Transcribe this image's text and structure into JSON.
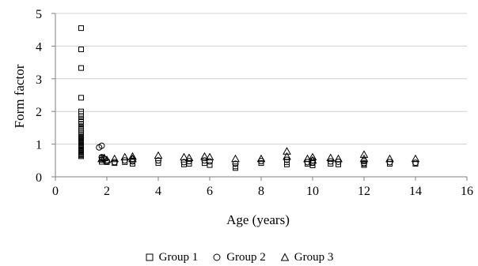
{
  "chart_data": {
    "type": "scatter",
    "title": "",
    "xlabel": "Age (years)",
    "ylabel": "Form factor",
    "xlim": [
      0,
      16
    ],
    "ylim": [
      0,
      5
    ],
    "xticks": [
      0,
      2,
      4,
      6,
      8,
      10,
      12,
      14,
      16
    ],
    "yticks": [
      0,
      1,
      2,
      3,
      4,
      5
    ],
    "grid": "horizontal",
    "legend_position": "bottom",
    "series": [
      {
        "name": "Group 1",
        "marker": "square",
        "x": [
          1,
          1,
          1,
          1,
          1,
          1,
          1,
          1,
          1,
          1,
          1,
          1,
          1,
          1,
          1,
          1,
          1,
          1,
          1,
          1,
          1,
          1,
          1,
          1,
          1,
          1,
          1,
          1,
          1,
          1,
          1,
          1,
          1,
          1,
          1,
          1.8,
          1.8,
          1.8,
          2,
          2.3,
          2.7,
          3,
          3,
          4,
          5,
          5.2,
          5.8,
          6,
          7,
          7,
          8,
          9,
          9,
          9.8,
          10,
          10,
          10.7,
          11,
          12,
          12,
          13,
          14
        ],
        "y": [
          4.55,
          3.9,
          3.33,
          2.42,
          2.0,
          1.93,
          1.85,
          1.75,
          1.68,
          1.62,
          1.55,
          1.5,
          1.45,
          1.4,
          1.35,
          1.3,
          1.26,
          1.22,
          1.18,
          1.14,
          1.1,
          1.06,
          1.02,
          0.98,
          0.94,
          0.9,
          0.87,
          0.84,
          0.81,
          0.78,
          0.75,
          0.72,
          0.69,
          0.66,
          0.63,
          0.58,
          0.52,
          0.46,
          0.45,
          0.42,
          0.45,
          0.5,
          0.4,
          0.42,
          0.38,
          0.4,
          0.42,
          0.36,
          0.32,
          0.27,
          0.42,
          0.45,
          0.38,
          0.4,
          0.42,
          0.35,
          0.4,
          0.38,
          0.4,
          0.36,
          0.4,
          0.4
        ]
      },
      {
        "name": "Group 2",
        "marker": "circle",
        "x": [
          1.7,
          1.8,
          1.8,
          1.9,
          2,
          2.3,
          2.7,
          3,
          3,
          4,
          5,
          5.2,
          5.8,
          6,
          7,
          8,
          9,
          9.8,
          10,
          10,
          10.7,
          11,
          12,
          12,
          13,
          14
        ],
        "y": [
          0.9,
          0.95,
          0.6,
          0.55,
          0.48,
          0.45,
          0.5,
          0.55,
          0.47,
          0.5,
          0.45,
          0.48,
          0.5,
          0.47,
          0.4,
          0.48,
          0.52,
          0.45,
          0.5,
          0.44,
          0.47,
          0.46,
          0.48,
          0.42,
          0.45,
          0.43
        ]
      },
      {
        "name": "Group 3",
        "marker": "triangle",
        "x": [
          1.8,
          1.9,
          2,
          2.3,
          2.7,
          3,
          3,
          4,
          5,
          5.2,
          5.8,
          6,
          7,
          8,
          9,
          9,
          9.8,
          10,
          10,
          10.7,
          11,
          12,
          12,
          13,
          14
        ],
        "y": [
          0.55,
          0.58,
          0.52,
          0.55,
          0.6,
          0.62,
          0.55,
          0.65,
          0.6,
          0.58,
          0.62,
          0.6,
          0.55,
          0.55,
          0.78,
          0.62,
          0.55,
          0.6,
          0.5,
          0.58,
          0.55,
          0.68,
          0.55,
          0.55,
          0.55
        ]
      }
    ]
  }
}
